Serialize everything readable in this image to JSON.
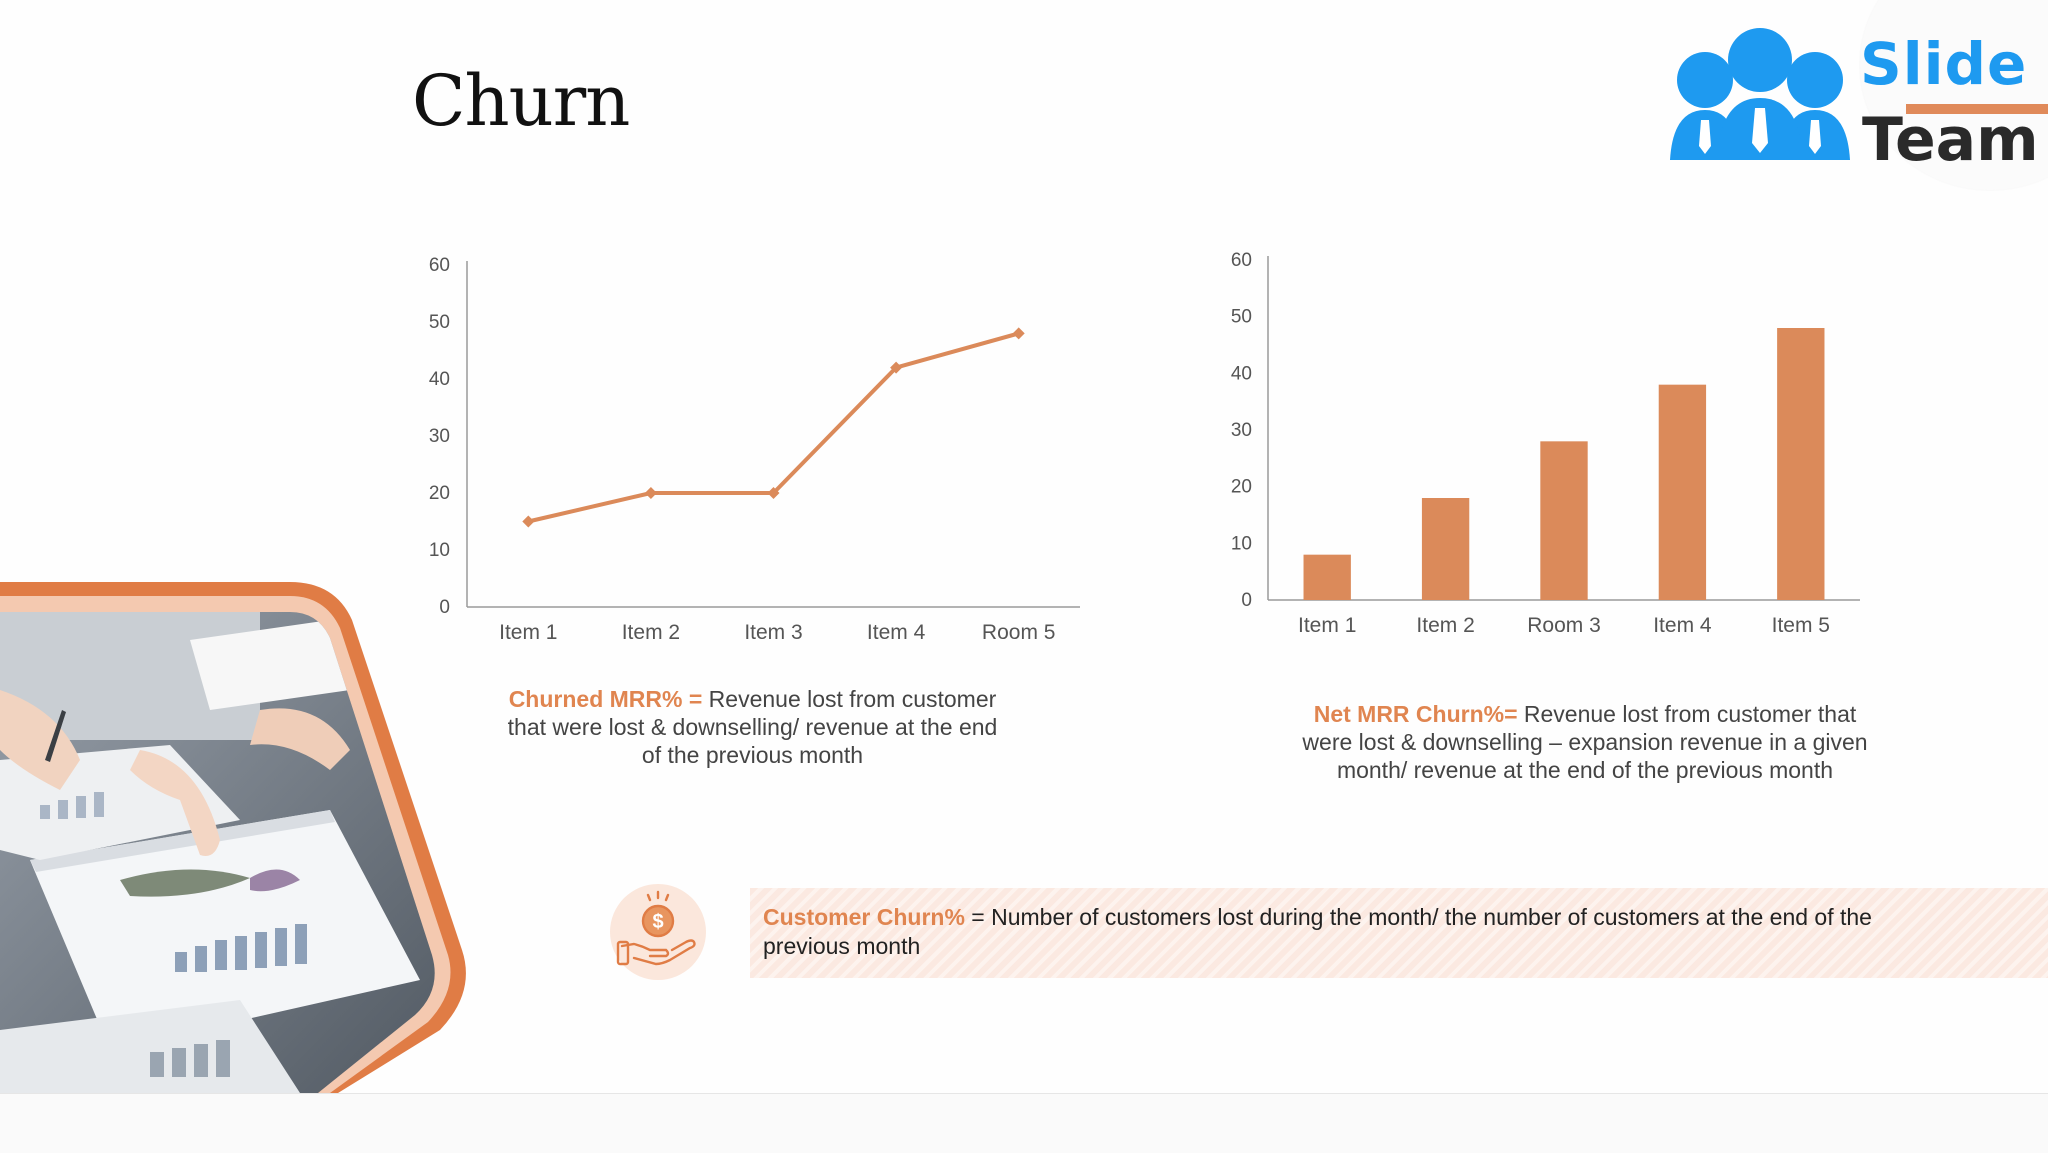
{
  "title": "Churn",
  "logo": {
    "line1": "Slide",
    "line2": "Team"
  },
  "colors": {
    "accent": "#DB8A5A",
    "banner": "#FBE9E1",
    "logo_blue": "#1E9AF0"
  },
  "chart_data": [
    {
      "type": "line",
      "categories": [
        "Item 1",
        "Item 2",
        "Item 3",
        "Item 4",
        "Room 5"
      ],
      "values": [
        15,
        20,
        20,
        42,
        48
      ],
      "yticks": [
        "0",
        "10",
        "20",
        "30",
        "40",
        "50",
        "60"
      ],
      "ylim": [
        0,
        60
      ]
    },
    {
      "type": "bar",
      "categories": [
        "Item 1",
        "Item 2",
        "Room 3",
        "Item 4",
        "Item 5"
      ],
      "values": [
        8,
        18,
        28,
        38,
        48
      ],
      "yticks": [
        "0",
        "10",
        "20",
        "30",
        "40",
        "50",
        "60"
      ],
      "ylim": [
        0,
        60
      ]
    }
  ],
  "descriptions": {
    "churned": {
      "label": "Churned MRR% =",
      "text": " Revenue lost from customer that were lost & downselling/ revenue at the end of the previous month"
    },
    "net": {
      "label": "Net MRR Churn%=",
      "text": " Revenue lost from customer that were lost & downselling – expansion revenue in a given month/ revenue at the end of the previous month"
    },
    "customer": {
      "label": "Customer Churn%",
      "text": " = Number of customers lost during the month/ the number of customers at the end of the previous month"
    }
  },
  "icons": {
    "banner_icon": "hand-holding-dollar-icon",
    "photo": "business-meeting-charts-photo"
  }
}
